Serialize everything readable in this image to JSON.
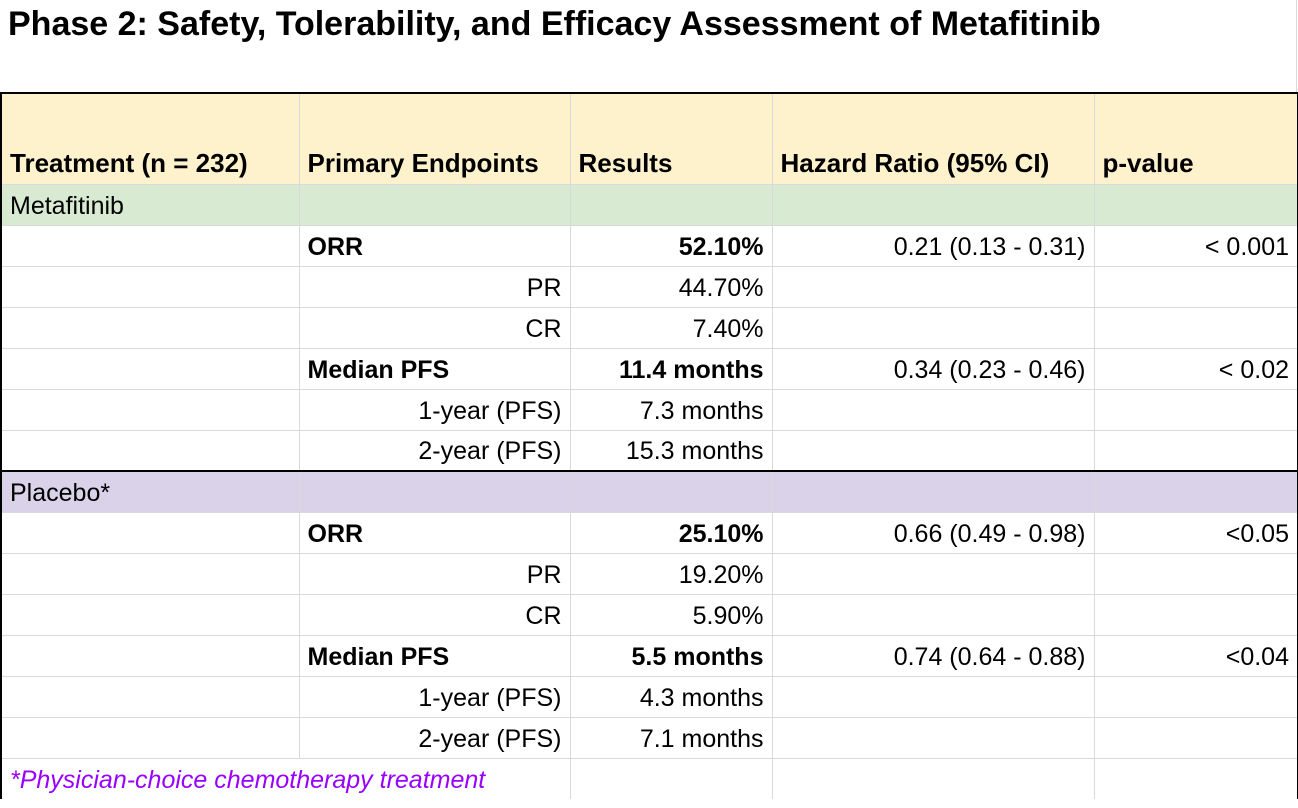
{
  "title": "Phase 2: Safety, Tolerability, and Efficacy Assessment of Metafitinib",
  "columns": [
    "Treatment (n = 232)",
    "Primary Endpoints",
    "Results",
    "Hazard Ratio (95% CI)",
    "p-value"
  ],
  "groups": [
    {
      "name": "Metafitinib",
      "color": "#d9ead3",
      "rows": [
        {
          "endpoint": "ORR",
          "result": "52.10%",
          "hr": "0.21 (0.13 - 0.31)",
          "p": "< 0.001",
          "bold": true
        },
        {
          "endpoint": "PR",
          "result": "44.70%",
          "hr": "",
          "p": "",
          "bold": false
        },
        {
          "endpoint": "CR",
          "result": "7.40%",
          "hr": "",
          "p": "",
          "bold": false
        },
        {
          "endpoint": "Median PFS",
          "result": "11.4 months",
          "hr": "0.34 (0.23 - 0.46)",
          "p": "< 0.02",
          "bold": true
        },
        {
          "endpoint": "1-year (PFS)",
          "result": "7.3 months",
          "hr": "",
          "p": "",
          "bold": false
        },
        {
          "endpoint": "2-year (PFS)",
          "result": "15.3 months",
          "hr": "",
          "p": "",
          "bold": false
        }
      ]
    },
    {
      "name": "Placebo*",
      "color": "#d9d2e9",
      "rows": [
        {
          "endpoint": "ORR",
          "result": "25.10%",
          "hr": "0.66 (0.49 - 0.98)",
          "p": "<0.05",
          "bold": true
        },
        {
          "endpoint": "PR",
          "result": "19.20%",
          "hr": "",
          "p": "",
          "bold": false
        },
        {
          "endpoint": "CR",
          "result": "5.90%",
          "hr": "",
          "p": "",
          "bold": false
        },
        {
          "endpoint": "Median PFS",
          "result": "5.5 months",
          "hr": "0.74 (0.64 - 0.88)",
          "p": "<0.04",
          "bold": true
        },
        {
          "endpoint": "1-year (PFS)",
          "result": "4.3 months",
          "hr": "",
          "p": "",
          "bold": false
        },
        {
          "endpoint": "2-year (PFS)",
          "result": "7.1 months",
          "hr": "",
          "p": "",
          "bold": false
        }
      ]
    }
  ],
  "footnote": "*Physician-choice chemotherapy treatment",
  "colors": {
    "header_bg": "#fdf2cc",
    "metafitinib_bg": "#d9ead3",
    "placebo_bg": "#d9d2e9",
    "footnote": "#9900ff"
  }
}
